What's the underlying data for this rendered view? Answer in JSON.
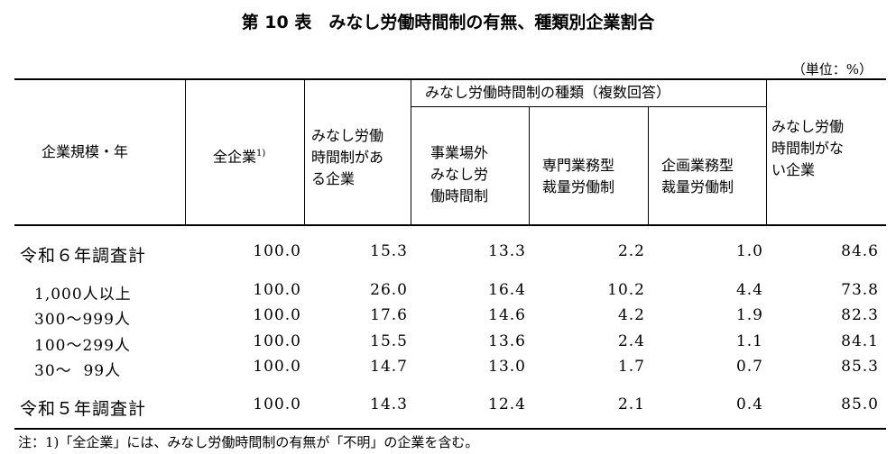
{
  "title": "第 10 表　みなし労働時間制の有無、種類別企業割合",
  "unit": "（単位：%）",
  "headers": {
    "size_year": "企業規模・年",
    "all_companies": "全企業",
    "all_companies_note": "1)",
    "has_system": [
      "みなし労働",
      "時間制があ",
      "る企業"
    ],
    "types_group": "みなし労働時間制の種類（複数回答）",
    "type_outside": [
      "事業場外",
      "みなし労",
      "働時間制"
    ],
    "type_professional": [
      "専門業務型",
      "裁量労働制"
    ],
    "type_planning": [
      "企画業務型",
      "裁量労働制"
    ],
    "no_system": [
      "みなし労働",
      "時間制がな",
      "い企業"
    ]
  },
  "rows": [
    {
      "label": "令和６年調査計",
      "all": "100.0",
      "has": "15.3",
      "outside": "13.3",
      "prof": "2.2",
      "plan": "1.0",
      "none": "84.6"
    },
    {
      "label": "1,000人以上",
      "all": "100.0",
      "has": "26.0",
      "outside": "16.4",
      "prof": "10.2",
      "plan": "4.4",
      "none": "73.8"
    },
    {
      "label": "300〜999人",
      "all": "100.0",
      "has": "17.6",
      "outside": "14.6",
      "prof": "4.2",
      "plan": "1.9",
      "none": "82.3"
    },
    {
      "label": "100〜299人",
      "all": "100.0",
      "has": "15.5",
      "outside": "13.6",
      "prof": "2.4",
      "plan": "1.1",
      "none": "84.1"
    },
    {
      "label": "30〜  99人",
      "all": "100.0",
      "has": "14.7",
      "outside": "13.0",
      "prof": "1.7",
      "plan": "0.7",
      "none": "85.3"
    },
    {
      "label": "令和５年調査計",
      "all": "100.0",
      "has": "14.3",
      "outside": "12.4",
      "prof": "2.1",
      "plan": "0.4",
      "none": "85.0"
    }
  ],
  "footnote": "注：1)「全企業」には、みなし労働時間制の有無が「不明」の企業を含む。"
}
